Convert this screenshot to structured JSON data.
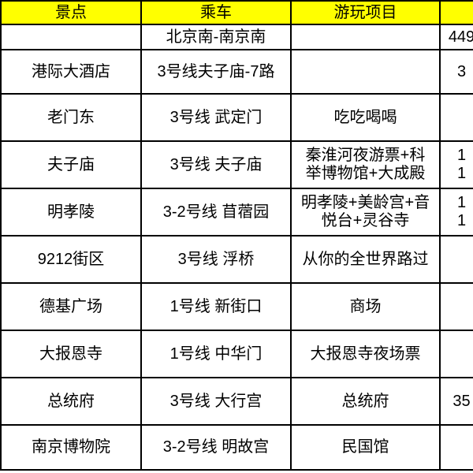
{
  "colors": {
    "header_bg": "#ffff00",
    "grid_line": "#000000",
    "text": "#000000",
    "background": "#ffffff"
  },
  "sheet": {
    "headers": [
      "景点",
      "乘车",
      "游玩项目",
      ""
    ],
    "rows": [
      {
        "attraction": "",
        "transit": "北京南-南京南",
        "activities": "",
        "price": "449"
      },
      {
        "attraction": "港际大酒店",
        "transit": "3号线夫子庙-7路",
        "activities": "",
        "price": "3"
      },
      {
        "attraction": "老门东",
        "transit": "3号线 武定门",
        "activities": "吃吃喝喝",
        "price": ""
      },
      {
        "attraction": "夫子庙",
        "transit": "3号线 夫子庙",
        "activities": "秦淮河夜游票+科\n举博物馆+大成殿",
        "price": "1\n1"
      },
      {
        "attraction": "明孝陵",
        "transit": "3-2号线 苜蓿园",
        "activities": "明孝陵+美龄宫+音\n悦台+灵谷寺",
        "price": "1\n1"
      },
      {
        "attraction": "9212街区",
        "transit": "3号线 浮桥",
        "activities": "从你的全世界路过",
        "price": ""
      },
      {
        "attraction": "德基广场",
        "transit": "1号线 新街口",
        "activities": "商场",
        "price": ""
      },
      {
        "attraction": "大报恩寺",
        "transit": "1号线 中华门",
        "activities": "大报恩寺夜场票",
        "price": ""
      },
      {
        "attraction": "总统府",
        "transit": "3号线 大行宫",
        "activities": "总统府",
        "price": "35"
      },
      {
        "attraction": "南京博物院",
        "transit": "3-2号线 明故宫",
        "activities": "民国馆",
        "price": ""
      }
    ]
  }
}
